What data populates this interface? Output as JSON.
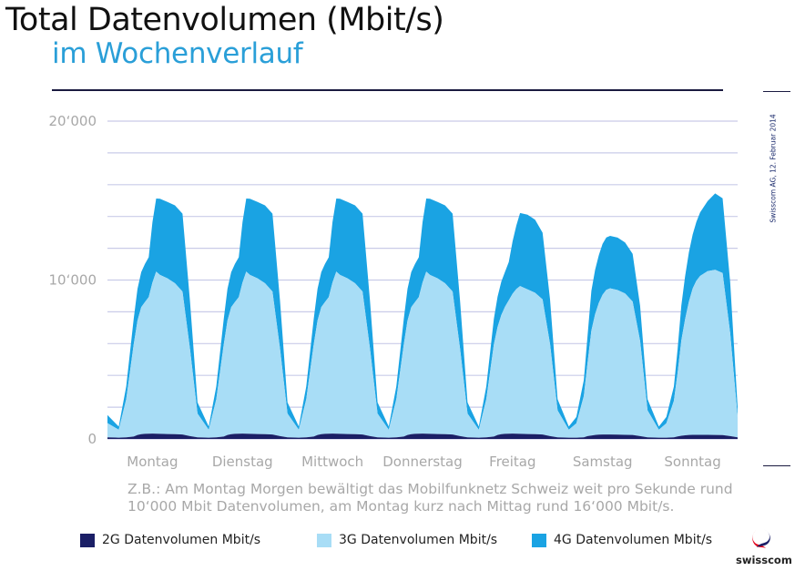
{
  "header": {
    "title": "Total Datenvolumen (Mbit/s)",
    "subtitle": "im Wochenverlauf"
  },
  "side_note": "Swisscom AG, 12. Februar 2014",
  "caption": "Z.B.: Am Montag Morgen bewältigt das Mobilfunknetz Schweiz weit pro Sekunde rund 10‘000 Mbit Datenvolumen, am Montag kurz nach Mittag rund 16‘000 Mbit/s.",
  "logo_text": "swisscom",
  "colors": {
    "2g": "#1b1f66",
    "3g": "#a8ddf6",
    "4g": "#1aa3e3",
    "grid": "#c9cbe8",
    "title": "#111111",
    "subtitle": "#2a9fd8"
  },
  "chart_data": {
    "type": "area",
    "stacked": true,
    "title": "Total Datenvolumen (Mbit/s)",
    "subtitle": "im Wochenverlauf",
    "xlabel": "",
    "ylabel": "",
    "ylim": [
      0,
      20000
    ],
    "yticks": [
      {
        "value": 0,
        "label": "0"
      },
      {
        "value": 10000,
        "label": "10‘000"
      },
      {
        "value": 20000,
        "label": "20‘000"
      }
    ],
    "grid": true,
    "legend_position": "bottom",
    "categories": [
      "Montag",
      "Dienstag",
      "Mittwoch",
      "Donnerstag",
      "Freitag",
      "Samstag",
      "Sonntag"
    ],
    "x_unit": "hour of week (0-168)",
    "x": [
      0,
      3,
      5,
      7,
      8,
      9,
      10,
      11,
      12,
      13,
      14,
      16,
      18,
      20,
      22,
      24,
      27,
      29,
      31,
      32,
      33,
      34,
      35,
      36,
      37,
      38,
      40,
      42,
      44,
      46,
      48,
      51,
      53,
      55,
      56,
      57,
      58,
      59,
      60,
      61,
      62,
      64,
      66,
      68,
      70,
      72,
      75,
      77,
      79,
      80,
      81,
      82,
      83,
      84,
      85,
      86,
      88,
      90,
      92,
      94,
      96,
      99,
      101,
      103,
      104,
      105,
      106,
      107,
      108,
      109,
      110,
      112,
      114,
      116,
      118,
      120,
      123,
      125,
      127,
      128,
      129,
      130,
      131,
      132,
      133,
      134,
      136,
      138,
      140,
      142,
      144,
      147,
      149,
      151,
      152,
      153,
      154,
      155,
      156,
      157,
      158,
      160,
      162,
      164,
      166,
      168
    ],
    "series": [
      {
        "name": "2G Datenvolumen Mbit/s",
        "values": [
          100,
          80,
          100,
          150,
          250,
          300,
          320,
          330,
          340,
          330,
          320,
          310,
          300,
          280,
          180,
          100,
          80,
          100,
          150,
          250,
          300,
          320,
          330,
          340,
          330,
          320,
          310,
          300,
          280,
          180,
          100,
          80,
          100,
          150,
          250,
          300,
          320,
          330,
          340,
          330,
          320,
          310,
          300,
          280,
          180,
          100,
          80,
          100,
          150,
          250,
          300,
          320,
          330,
          340,
          330,
          320,
          310,
          300,
          280,
          180,
          100,
          80,
          100,
          150,
          250,
          300,
          320,
          330,
          340,
          330,
          320,
          310,
          300,
          280,
          180,
          100,
          80,
          80,
          100,
          180,
          220,
          250,
          270,
          280,
          280,
          280,
          270,
          260,
          250,
          180,
          100,
          80,
          80,
          100,
          160,
          200,
          230,
          250,
          260,
          260,
          260,
          260,
          250,
          240,
          180,
          100
        ]
      },
      {
        "name": "3G Datenvolumen Mbit/s",
        "values": [
          900,
          500,
          2400,
          5800,
          7200,
          8000,
          8300,
          8600,
          9500,
          10200,
          10000,
          9800,
          9500,
          9000,
          5500,
          1500,
          500,
          2400,
          5800,
          7200,
          8000,
          8300,
          8600,
          9500,
          10200,
          10000,
          9800,
          9500,
          9000,
          5500,
          1500,
          500,
          2400,
          5800,
          7200,
          8000,
          8300,
          8600,
          9500,
          10200,
          10000,
          9800,
          9500,
          9000,
          5500,
          1500,
          500,
          2400,
          5800,
          7200,
          8000,
          8300,
          8600,
          9500,
          10200,
          10000,
          9800,
          9500,
          9000,
          5500,
          1500,
          500,
          2400,
          5800,
          6800,
          7500,
          8000,
          8400,
          8800,
          9100,
          9300,
          9100,
          8900,
          8500,
          5800,
          1700,
          500,
          900,
          2600,
          4600,
          6600,
          7600,
          8300,
          8800,
          9100,
          9200,
          9100,
          8900,
          8400,
          6000,
          1700,
          500,
          900,
          2300,
          4000,
          6000,
          7300,
          8400,
          9200,
          9700,
          10000,
          10300,
          10400,
          10200,
          6500,
          1300
        ]
      },
      {
        "name": "4G Datenvolumen Mbit/s",
        "values": [
          500,
          200,
          800,
          1600,
          2000,
          2200,
          2400,
          2500,
          3800,
          4600,
          4800,
          4800,
          4900,
          4900,
          3000,
          700,
          200,
          800,
          1600,
          2000,
          2200,
          2400,
          2500,
          3800,
          4600,
          4800,
          4800,
          4900,
          4900,
          3000,
          700,
          200,
          800,
          1600,
          2000,
          2200,
          2400,
          2500,
          3800,
          4600,
          4800,
          4800,
          4900,
          4900,
          3000,
          700,
          200,
          800,
          1600,
          2000,
          2200,
          2400,
          2500,
          3800,
          4600,
          4800,
          4800,
          4900,
          4900,
          3000,
          700,
          200,
          800,
          1600,
          1900,
          2100,
          2200,
          2400,
          3300,
          4000,
          4600,
          4700,
          4600,
          4200,
          2800,
          700,
          200,
          400,
          1000,
          1700,
          2500,
          2800,
          3000,
          3200,
          3300,
          3300,
          3300,
          3200,
          3000,
          2200,
          700,
          200,
          400,
          900,
          1500,
          2200,
          2700,
          3100,
          3400,
          3700,
          4000,
          4400,
          4800,
          4700,
          3200,
          600
        ]
      }
    ]
  }
}
